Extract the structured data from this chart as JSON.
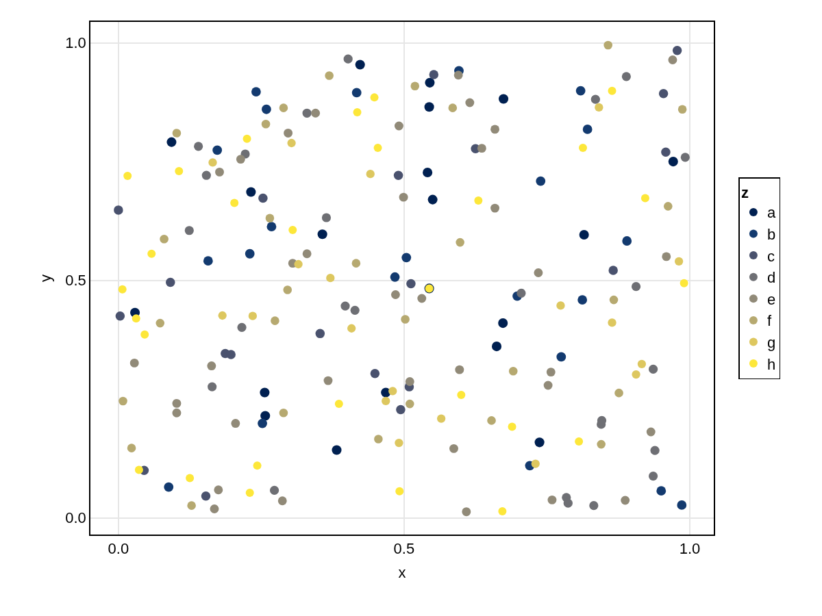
{
  "chart_data": {
    "type": "scatter",
    "xlabel": "x",
    "ylabel": "y",
    "legend_title": "z",
    "xlim": [
      -0.049,
      1.042
    ],
    "ylim": [
      -0.035,
      1.044
    ],
    "xticks": [
      {
        "value": 0,
        "label": "0.0"
      },
      {
        "value": 0.5,
        "label": "0.5"
      },
      {
        "value": 1,
        "label": "1.0"
      }
    ],
    "yticks": [
      {
        "value": 0,
        "label": "0.0"
      },
      {
        "value": 0.5,
        "label": "0.5"
      },
      {
        "value": 1,
        "label": "1.0"
      }
    ],
    "grid": true,
    "legend": "right",
    "marker": "circle",
    "series": [
      {
        "name": "a",
        "color": "#002051",
        "x": [
          0.093,
          0.232,
          0.423,
          0.545,
          0.544,
          0.674,
          0.541,
          0.55,
          0.357,
          0.971,
          0.815,
          0.029,
          0.256,
          0.257,
          0.544,
          0.673,
          0.662,
          0.468,
          0.382,
          0.737
        ],
        "values": [
          0.791,
          0.686,
          0.954,
          0.916,
          0.865,
          0.882,
          0.727,
          0.67,
          0.597,
          0.75,
          0.596,
          0.432,
          0.264,
          0.215,
          0.483,
          0.41,
          0.361,
          0.264,
          0.143,
          0.159
        ]
      },
      {
        "name": "b",
        "color": "#133a6f",
        "x": [
          0.241,
          0.259,
          0.173,
          0.268,
          0.157,
          0.23,
          0.596,
          0.417,
          0.504,
          0.484,
          0.809,
          0.821,
          0.739,
          0.89,
          0.252,
          0.088,
          0.698,
          0.812,
          0.775,
          0.72,
          0.95,
          0.986
        ],
        "values": [
          0.897,
          0.86,
          0.774,
          0.613,
          0.541,
          0.556,
          0.941,
          0.895,
          0.548,
          0.507,
          0.899,
          0.818,
          0.709,
          0.583,
          0.199,
          0.065,
          0.467,
          0.459,
          0.339,
          0.11,
          0.057,
          0.027
        ]
      },
      {
        "name": "c",
        "color": "#4a526e",
        "x": [
          0.253,
          0.0,
          0.091,
          0.552,
          0.625,
          0.49,
          0.512,
          0.978,
          0.954,
          0.958,
          0.866,
          0.003,
          0.187,
          0.197,
          0.045,
          0.153,
          0.353,
          0.449,
          0.509,
          0.494
        ],
        "values": [
          0.673,
          0.648,
          0.496,
          0.933,
          0.777,
          0.721,
          0.493,
          0.984,
          0.893,
          0.77,
          0.521,
          0.425,
          0.346,
          0.344,
          0.1,
          0.046,
          0.388,
          0.304,
          0.276,
          0.228
        ]
      },
      {
        "name": "d",
        "color": "#6e6f74",
        "x": [
          0.33,
          0.14,
          0.222,
          0.154,
          0.124,
          0.402,
          0.364,
          0.889,
          0.835,
          0.992,
          0.906,
          0.216,
          0.164,
          0.273,
          0.397,
          0.414,
          0.705,
          0.936,
          0.846,
          0.845,
          0.939,
          0.936,
          0.784,
          0.787,
          0.832
        ],
        "values": [
          0.852,
          0.782,
          0.766,
          0.721,
          0.605,
          0.966,
          0.632,
          0.929,
          0.881,
          0.759,
          0.487,
          0.401,
          0.276,
          0.058,
          0.446,
          0.437,
          0.473,
          0.313,
          0.205,
          0.197,
          0.142,
          0.088,
          0.043,
          0.031,
          0.026
        ]
      },
      {
        "name": "e",
        "color": "#918a78",
        "x": [
          0.345,
          0.297,
          0.214,
          0.177,
          0.33,
          0.305,
          0.595,
          0.615,
          0.491,
          0.659,
          0.636,
          0.499,
          0.659,
          0.97,
          0.959,
          0.735,
          0.028,
          0.163,
          0.102,
          0.102,
          0.205,
          0.175,
          0.287,
          0.168,
          0.485,
          0.531,
          0.367,
          0.597,
          0.51,
          0.587,
          0.609,
          0.757,
          0.752,
          0.932,
          0.759,
          0.887
        ],
        "values": [
          0.852,
          0.81,
          0.755,
          0.728,
          0.556,
          0.536,
          0.932,
          0.874,
          0.825,
          0.818,
          0.778,
          0.675,
          0.652,
          0.964,
          0.55,
          0.516,
          0.326,
          0.32,
          0.241,
          0.221,
          0.199,
          0.059,
          0.036,
          0.019,
          0.47,
          0.462,
          0.289,
          0.312,
          0.287,
          0.146,
          0.013,
          0.307,
          0.279,
          0.181,
          0.038,
          0.037
        ]
      },
      {
        "name": "f",
        "color": "#b6a970",
        "x": [
          0.289,
          0.258,
          0.102,
          0.265,
          0.08,
          0.369,
          0.519,
          0.585,
          0.598,
          0.416,
          0.857,
          0.987,
          0.962,
          0.296,
          0.073,
          0.274,
          0.008,
          0.289,
          0.023,
          0.128,
          0.502,
          0.51,
          0.455,
          0.653,
          0.867,
          0.691,
          0.876,
          0.845
        ],
        "values": [
          0.863,
          0.829,
          0.81,
          0.631,
          0.587,
          0.931,
          0.909,
          0.863,
          0.58,
          0.536,
          0.995,
          0.86,
          0.656,
          0.48,
          0.41,
          0.415,
          0.246,
          0.221,
          0.147,
          0.026,
          0.418,
          0.24,
          0.166,
          0.205,
          0.459,
          0.309,
          0.263,
          0.155
        ]
      },
      {
        "name": "g",
        "color": "#ddc75f",
        "x": [
          0.303,
          0.165,
          0.315,
          0.441,
          0.371,
          0.841,
          0.981,
          0.182,
          0.235,
          0.408,
          0.48,
          0.468,
          0.565,
          0.491,
          0.774,
          0.864,
          0.916,
          0.906,
          0.73
        ],
        "values": [
          0.789,
          0.748,
          0.534,
          0.724,
          0.505,
          0.864,
          0.54,
          0.426,
          0.425,
          0.399,
          0.267,
          0.246,
          0.209,
          0.158,
          0.447,
          0.411,
          0.324,
          0.302,
          0.114
        ]
      },
      {
        "name": "h",
        "color": "#fde73a",
        "x": [
          0.225,
          0.106,
          0.016,
          0.203,
          0.305,
          0.058,
          0.448,
          0.418,
          0.454,
          0.63,
          0.864,
          0.813,
          0.922,
          0.99,
          0.007,
          0.031,
          0.046,
          0.036,
          0.243,
          0.125,
          0.23,
          0.544,
          0.386,
          0.6,
          0.492,
          0.672,
          0.689,
          0.806
        ],
        "values": [
          0.798,
          0.73,
          0.72,
          0.663,
          0.606,
          0.556,
          0.885,
          0.854,
          0.779,
          0.668,
          0.899,
          0.779,
          0.673,
          0.494,
          0.481,
          0.42,
          0.386,
          0.101,
          0.11,
          0.084,
          0.053,
          0.483,
          0.24,
          0.259,
          0.056,
          0.014,
          0.192,
          0.161
        ]
      }
    ]
  }
}
